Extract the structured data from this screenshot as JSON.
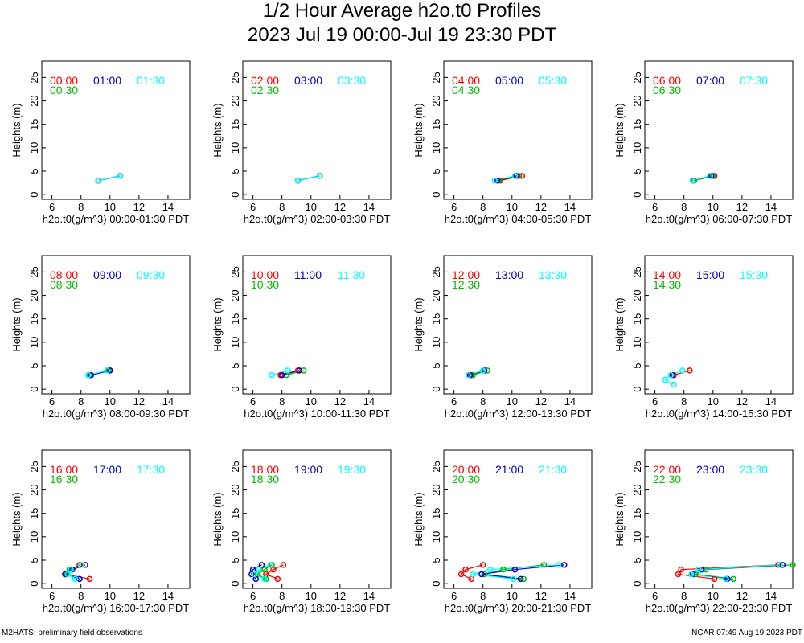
{
  "title": "1/2 Hour Average h2o.t0 Profiles",
  "subtitle": "2023 Jul 19 00:00-Jul 19 23:30 PDT",
  "footer_left": "M2HATS: preliminary field observations",
  "footer_right": "NCAR 07:49 Aug 19 2023 PDT",
  "colors": {
    "a": "#ff0000",
    "a30": "#00bb00",
    "b": "#0000cc",
    "b30": "#00ffff"
  },
  "chart_data": [
    {
      "type": "line",
      "xlabel": "h2o.t0(g/m^3) 00:00-01:30 PDT",
      "ylabel": "Heights (m)",
      "xlim": [
        5.3,
        15.5
      ],
      "ylim": [
        -1,
        28.5
      ],
      "xticks": [
        6,
        8,
        10,
        12,
        14
      ],
      "yticks": [
        0,
        5,
        10,
        15,
        20,
        25
      ],
      "series": [
        {
          "name": "00:00",
          "color": "#ff0000",
          "points": [
            [
              9.2,
              3
            ],
            [
              10.7,
              4
            ]
          ]
        },
        {
          "name": "00:30",
          "color": "#00bb00",
          "points": [
            [
              9.2,
              3
            ],
            [
              10.7,
              4
            ]
          ]
        },
        {
          "name": "01:00",
          "color": "#0000cc",
          "points": [
            [
              9.2,
              3
            ],
            [
              10.7,
              4
            ]
          ]
        },
        {
          "name": "01:30",
          "color": "#00ffff",
          "points": [
            [
              9.2,
              3
            ],
            [
              10.7,
              4
            ]
          ]
        }
      ]
    },
    {
      "type": "line",
      "xlabel": "h2o.t0(g/m^3) 02:00-03:30 PDT",
      "ylabel": "Heights (m)",
      "xlim": [
        5.3,
        15.5
      ],
      "ylim": [
        -1,
        28.5
      ],
      "xticks": [
        6,
        8,
        10,
        12,
        14
      ],
      "yticks": [
        0,
        5,
        10,
        15,
        20,
        25
      ],
      "series": [
        {
          "name": "02:00",
          "color": "#ff0000",
          "points": [
            [
              9.1,
              3
            ],
            [
              10.6,
              4
            ]
          ]
        },
        {
          "name": "02:30",
          "color": "#00bb00",
          "points": [
            [
              9.1,
              3
            ],
            [
              10.6,
              4
            ]
          ]
        },
        {
          "name": "03:00",
          "color": "#0000cc",
          "points": [
            [
              9.1,
              3
            ],
            [
              10.6,
              4
            ]
          ]
        },
        {
          "name": "03:30",
          "color": "#00ffff",
          "points": [
            [
              9.1,
              3
            ],
            [
              10.6,
              4
            ]
          ]
        }
      ]
    },
    {
      "type": "line",
      "xlabel": "h2o.t0(g/m^3) 04:00-05:30 PDT",
      "ylabel": "Heights (m)",
      "xlim": [
        5.3,
        15.5
      ],
      "ylim": [
        -1,
        28.5
      ],
      "xticks": [
        6,
        8,
        10,
        12,
        14
      ],
      "yticks": [
        0,
        5,
        10,
        15,
        20,
        25
      ],
      "series": [
        {
          "name": "04:00",
          "color": "#ff0000",
          "points": [
            [
              9.2,
              3
            ],
            [
              10.7,
              4
            ]
          ]
        },
        {
          "name": "04:30",
          "color": "#00bb00",
          "points": [
            [
              9.1,
              3
            ],
            [
              10.5,
              4
            ]
          ]
        },
        {
          "name": "05:00",
          "color": "#0000cc",
          "points": [
            [
              9.0,
              3
            ],
            [
              10.3,
              4
            ]
          ]
        },
        {
          "name": "05:30",
          "color": "#00ffff",
          "points": [
            [
              8.8,
              3
            ],
            [
              10.2,
              4
            ]
          ]
        }
      ]
    },
    {
      "type": "line",
      "xlabel": "h2o.t0(g/m^3) 06:00-07:30 PDT",
      "ylabel": "Heights (m)",
      "xlim": [
        5.3,
        15.5
      ],
      "ylim": [
        -1,
        28.5
      ],
      "xticks": [
        6,
        8,
        10,
        12,
        14
      ],
      "yticks": [
        0,
        5,
        10,
        15,
        20,
        25
      ],
      "series": [
        {
          "name": "06:00",
          "color": "#ff0000",
          "points": [
            [
              8.7,
              3
            ],
            [
              10.1,
              4
            ]
          ]
        },
        {
          "name": "06:30",
          "color": "#00bb00",
          "points": [
            [
              8.7,
              3
            ],
            [
              10.0,
              4
            ]
          ]
        },
        {
          "name": "07:00",
          "color": "#0000cc",
          "points": [
            [
              8.6,
              3
            ],
            [
              9.9,
              4
            ]
          ]
        },
        {
          "name": "07:30",
          "color": "#00ffff",
          "points": [
            [
              8.6,
              3
            ],
            [
              9.8,
              4
            ]
          ]
        }
      ]
    },
    {
      "type": "line",
      "xlabel": "h2o.t0(g/m^3) 08:00-09:30 PDT",
      "ylabel": "Heights (m)",
      "xlim": [
        5.3,
        15.5
      ],
      "ylim": [
        -1,
        28.5
      ],
      "xticks": [
        6,
        8,
        10,
        12,
        14
      ],
      "yticks": [
        0,
        5,
        10,
        15,
        20,
        25
      ],
      "series": [
        {
          "name": "08:00",
          "color": "#ff0000",
          "points": [
            [
              8.7,
              3
            ],
            [
              10.0,
              4
            ]
          ]
        },
        {
          "name": "08:30",
          "color": "#00bb00",
          "points": [
            [
              8.6,
              3
            ],
            [
              9.9,
              4
            ]
          ]
        },
        {
          "name": "09:00",
          "color": "#0000cc",
          "points": [
            [
              8.7,
              3
            ],
            [
              10.0,
              4
            ]
          ]
        },
        {
          "name": "09:30",
          "color": "#00ffff",
          "points": [
            [
              8.5,
              3
            ],
            [
              9.8,
              4
            ]
          ]
        }
      ]
    },
    {
      "type": "line",
      "xlabel": "h2o.t0(g/m^3) 10:00-11:30 PDT",
      "ylabel": "Heights (m)",
      "xlim": [
        5.3,
        15.5
      ],
      "ylim": [
        -1,
        28.5
      ],
      "xticks": [
        6,
        8,
        10,
        12,
        14
      ],
      "yticks": [
        0,
        5,
        10,
        15,
        20,
        25
      ],
      "series": [
        {
          "name": "10:00",
          "color": "#ff0000",
          "points": [
            [
              7.9,
              3
            ],
            [
              9.1,
              4
            ]
          ]
        },
        {
          "name": "10:30",
          "color": "#00bb00",
          "points": [
            [
              8.3,
              3
            ],
            [
              9.5,
              4
            ]
          ]
        },
        {
          "name": "11:00",
          "color": "#0000cc",
          "points": [
            [
              8.0,
              3
            ],
            [
              9.2,
              4
            ]
          ]
        },
        {
          "name": "11:30",
          "color": "#00ffff",
          "points": [
            [
              7.3,
              3
            ],
            [
              8.4,
              4
            ]
          ]
        }
      ]
    },
    {
      "type": "line",
      "xlabel": "h2o.t0(g/m^3) 12:00-13:30 PDT",
      "ylabel": "Heights (m)",
      "xlim": [
        5.3,
        15.5
      ],
      "ylim": [
        -1,
        28.5
      ],
      "xticks": [
        6,
        8,
        10,
        12,
        14
      ],
      "yticks": [
        0,
        5,
        10,
        15,
        20,
        25
      ],
      "series": [
        {
          "name": "12:00",
          "color": "#ff0000",
          "points": [
            [
              7.2,
              3
            ],
            [
              8.1,
              4
            ]
          ]
        },
        {
          "name": "12:30",
          "color": "#00bb00",
          "points": [
            [
              7.3,
              3
            ],
            [
              8.3,
              4
            ]
          ]
        },
        {
          "name": "13:00",
          "color": "#0000cc",
          "points": [
            [
              7.1,
              3
            ],
            [
              8.1,
              4
            ]
          ]
        },
        {
          "name": "13:30",
          "color": "#00ffff",
          "points": [
            [
              7.0,
              3
            ],
            [
              8.0,
              4
            ]
          ]
        }
      ]
    },
    {
      "type": "line",
      "xlabel": "h2o.t0(g/m^3) 14:00-15:30 PDT",
      "ylabel": "Heights (m)",
      "xlim": [
        5.3,
        15.5
      ],
      "ylim": [
        -1,
        28.5
      ],
      "xticks": [
        6,
        8,
        10,
        12,
        14
      ],
      "yticks": [
        0,
        5,
        10,
        15,
        20,
        25
      ],
      "series": [
        {
          "name": "14:00",
          "color": "#ff0000",
          "points": [
            [
              7.3,
              3
            ],
            [
              8.4,
              4
            ]
          ]
        },
        {
          "name": "14:30",
          "color": "#00bb00",
          "points": []
        },
        {
          "name": "15:00",
          "color": "#0000cc",
          "points": [
            [
              7.2,
              3
            ]
          ]
        },
        {
          "name": "15:30",
          "color": "#00ffff",
          "points": [
            [
              7.3,
              1
            ],
            [
              6.7,
              2
            ],
            [
              7.1,
              3
            ],
            [
              7.9,
              4
            ]
          ]
        }
      ]
    },
    {
      "type": "line",
      "xlabel": "h2o.t0(g/m^3) 16:00-17:30 PDT",
      "ylabel": "Heights (m)",
      "xlim": [
        5.3,
        15.5
      ],
      "ylim": [
        -1,
        28.5
      ],
      "xticks": [
        6,
        8,
        10,
        12,
        14
      ],
      "yticks": [
        0,
        5,
        10,
        15,
        20,
        25
      ],
      "series": [
        {
          "name": "16:00",
          "color": "#ff0000",
          "points": [
            [
              8.6,
              1
            ],
            [
              6.9,
              2
            ],
            [
              7.3,
              3
            ],
            [
              7.9,
              4
            ]
          ]
        },
        {
          "name": "16:30",
          "color": "#00bb00",
          "points": [
            [
              7.9,
              1
            ],
            [
              7.0,
              2
            ],
            [
              7.2,
              3
            ],
            [
              8.0,
              4
            ]
          ]
        },
        {
          "name": "17:00",
          "color": "#0000cc",
          "points": [
            [
              7.9,
              1
            ],
            [
              6.9,
              2
            ],
            [
              7.4,
              3
            ],
            [
              8.3,
              4
            ]
          ]
        },
        {
          "name": "17:30",
          "color": "#00ffff",
          "points": [
            [
              7.6,
              1
            ],
            [
              7.1,
              2
            ],
            [
              7.3,
              3
            ],
            [
              8.0,
              4
            ]
          ]
        }
      ]
    },
    {
      "type": "line",
      "xlabel": "h2o.t0(g/m^3) 18:00-19:30 PDT",
      "ylabel": "Heights (m)",
      "xlim": [
        5.3,
        15.5
      ],
      "ylim": [
        -1,
        28.5
      ],
      "xticks": [
        6,
        8,
        10,
        12,
        14
      ],
      "yticks": [
        0,
        5,
        10,
        15,
        20,
        25
      ],
      "series": [
        {
          "name": "18:00",
          "color": "#ff0000",
          "points": [
            [
              7.7,
              1
            ],
            [
              6.9,
              2
            ],
            [
              7.4,
              3
            ],
            [
              8.1,
              4
            ]
          ]
        },
        {
          "name": "18:30",
          "color": "#00bb00",
          "points": [
            [
              6.9,
              1
            ],
            [
              6.3,
              2
            ],
            [
              6.8,
              3
            ],
            [
              7.3,
              4
            ]
          ]
        },
        {
          "name": "19:00",
          "color": "#0000cc",
          "points": [
            [
              6.2,
              1
            ],
            [
              5.9,
              2
            ],
            [
              6.0,
              3
            ],
            [
              6.6,
              4
            ]
          ]
        },
        {
          "name": "19:30",
          "color": "#00ffff",
          "points": [
            [
              6.8,
              1
            ],
            [
              6.1,
              2
            ],
            [
              6.4,
              3
            ],
            [
              7.2,
              4
            ]
          ]
        }
      ]
    },
    {
      "type": "line",
      "xlabel": "h2o.t0(g/m^3) 20:00-21:30 PDT",
      "ylabel": "Heights (m)",
      "xlim": [
        5.3,
        15.5
      ],
      "ylim": [
        -1,
        28.5
      ],
      "xticks": [
        6,
        8,
        10,
        12,
        14
      ],
      "yticks": [
        0,
        5,
        10,
        15,
        20,
        25
      ],
      "series": [
        {
          "name": "20:00",
          "color": "#ff0000",
          "points": [
            [
              7.2,
              1
            ],
            [
              6.5,
              2
            ],
            [
              6.8,
              3
            ],
            [
              8.0,
              4
            ]
          ]
        },
        {
          "name": "20:30",
          "color": "#00bb00",
          "points": [
            [
              10.8,
              1
            ],
            [
              8.1,
              2
            ],
            [
              9.4,
              3
            ],
            [
              12.2,
              4
            ]
          ]
        },
        {
          "name": "21:00",
          "color": "#0000cc",
          "points": [
            [
              10.6,
              1
            ],
            [
              7.9,
              2
            ],
            [
              10.2,
              3
            ],
            [
              13.6,
              4
            ]
          ]
        },
        {
          "name": "21:30",
          "color": "#00ffff",
          "points": [
            [
              10.1,
              1
            ],
            [
              7.3,
              2
            ],
            [
              8.5,
              3
            ],
            [
              13.2,
              4
            ]
          ]
        }
      ]
    },
    {
      "type": "line",
      "xlabel": "h2o.t0(g/m^3) 22:00-23:30 PDT",
      "ylabel": "Heights (m)",
      "xlim": [
        5.3,
        15.5
      ],
      "ylim": [
        -1,
        28.5
      ],
      "xticks": [
        6,
        8,
        10,
        12,
        14
      ],
      "yticks": [
        0,
        5,
        10,
        15,
        20,
        25
      ],
      "series": [
        {
          "name": "22:00",
          "color": "#ff0000",
          "points": [
            [
              10.1,
              1
            ],
            [
              7.6,
              2
            ],
            [
              7.8,
              3
            ],
            [
              14.5,
              4
            ]
          ]
        },
        {
          "name": "22:30",
          "color": "#00bb00",
          "points": [
            [
              11.4,
              1
            ],
            [
              8.8,
              2
            ],
            [
              9.5,
              3
            ],
            [
              15.5,
              4
            ]
          ]
        },
        {
          "name": "23:00",
          "color": "#0000cc",
          "points": [
            [
              11.0,
              1
            ],
            [
              8.6,
              2
            ],
            [
              9.2,
              3
            ],
            [
              14.8,
              4
            ]
          ]
        },
        {
          "name": "23:30",
          "color": "#00ffff",
          "points": [
            [
              10.9,
              1
            ],
            [
              8.5,
              2
            ],
            [
              9.0,
              3
            ],
            [
              14.6,
              4
            ]
          ]
        }
      ]
    }
  ]
}
